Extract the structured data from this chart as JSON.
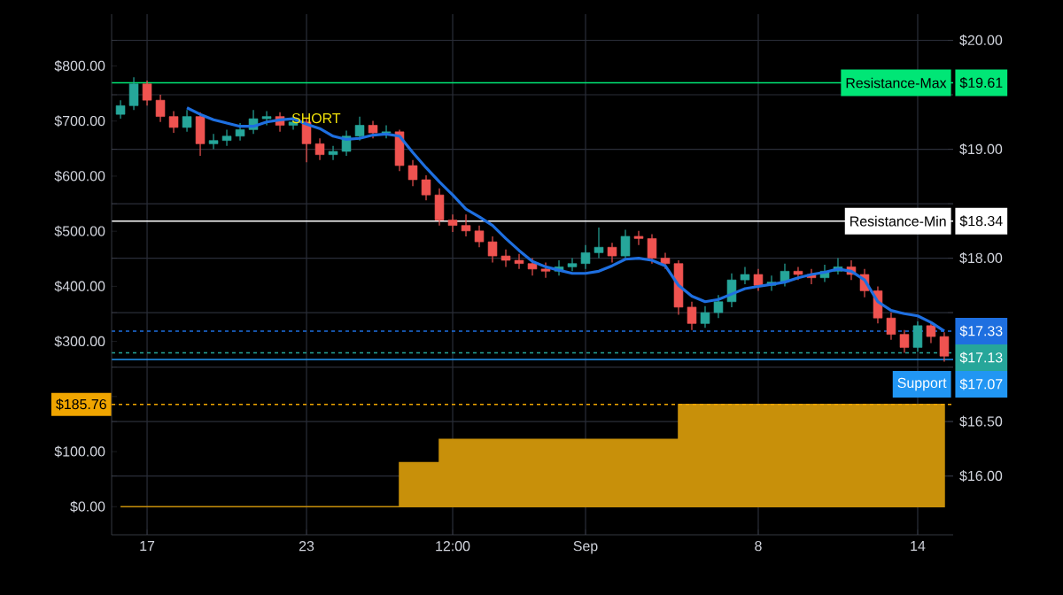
{
  "chart_data": {
    "type": "candlestick",
    "grid": true,
    "categories": [
      null,
      null,
      "17",
      null,
      null,
      null,
      null,
      null,
      null,
      null,
      null,
      null,
      null,
      null,
      "23",
      null,
      null,
      null,
      null,
      null,
      null,
      null,
      null,
      null,
      null,
      "12:00",
      null,
      null,
      null,
      null,
      null,
      null,
      null,
      null,
      null,
      "Sep",
      null,
      null,
      null,
      null,
      null,
      null,
      null,
      null,
      null,
      null,
      null,
      null,
      "8",
      null,
      null,
      null,
      null,
      null,
      null,
      null,
      null,
      null,
      null,
      null,
      "14",
      null,
      null
    ],
    "ylim": [
      -51,
      894
    ],
    "yticks": [
      {
        "value": 0,
        "label": "$0.00"
      },
      {
        "value": 100,
        "label": "$100.00"
      },
      {
        "value": 185.76,
        "label": "$185.76"
      },
      {
        "value": 200,
        "label": null
      },
      {
        "value": 300,
        "label": "$300.00"
      },
      {
        "value": 400,
        "label": "$400.00"
      },
      {
        "value": 500,
        "label": "$500.00"
      },
      {
        "value": 600,
        "label": "$600.00"
      },
      {
        "value": 700,
        "label": "$700.00"
      },
      {
        "value": 800,
        "label": "$800.00"
      }
    ],
    "y2lim": [
      15.46,
      20.24
    ],
    "y2ticks": [
      {
        "value": 16,
        "label": "$16.00"
      },
      {
        "value": 16.5,
        "label": "$16.50"
      },
      {
        "value": 17,
        "label": null
      },
      {
        "value": 17.33,
        "label": "$17.33"
      },
      {
        "value": 17.5,
        "label": null
      },
      {
        "value": 18,
        "label": "$18.00"
      },
      {
        "value": 18.34,
        "label": "$18.34"
      },
      {
        "value": 18.5,
        "label": null
      },
      {
        "value": 19,
        "label": "$19.00"
      },
      {
        "value": 19.5,
        "label": null
      },
      {
        "value": 19.61,
        "label": "$19.61"
      },
      {
        "value": 20,
        "label": "$20.00"
      }
    ],
    "series": [
      {
        "axis": "y2",
        "ohlc": [
          [
            19.32,
            19.45,
            19.28,
            19.4
          ],
          [
            19.4,
            19.66,
            19.36,
            19.6
          ],
          [
            19.6,
            19.63,
            19.4,
            19.45
          ],
          [
            19.45,
            19.5,
            19.25,
            19.3
          ],
          [
            19.3,
            19.35,
            19.15,
            19.2
          ],
          [
            19.2,
            19.36,
            19.16,
            19.3
          ],
          [
            19.3,
            19.34,
            18.94,
            19.05
          ],
          [
            19.05,
            19.14,
            19.0,
            19.08
          ],
          [
            19.08,
            19.18,
            19.03,
            19.12
          ],
          [
            19.12,
            19.24,
            19.08,
            19.18
          ],
          [
            19.18,
            19.36,
            19.14,
            19.28
          ],
          [
            19.28,
            19.35,
            19.22,
            19.3
          ],
          [
            19.3,
            19.34,
            19.16,
            19.22
          ],
          [
            19.22,
            19.3,
            19.18,
            19.25
          ],
          [
            19.25,
            19.28,
            18.88,
            19.05
          ],
          [
            19.05,
            19.1,
            18.9,
            18.95
          ],
          [
            18.95,
            19.03,
            18.9,
            18.98
          ],
          [
            18.98,
            19.17,
            18.94,
            19.12
          ],
          [
            19.12,
            19.3,
            19.08,
            19.22
          ],
          [
            19.22,
            19.26,
            19.1,
            19.15
          ],
          [
            19.15,
            19.22,
            19.1,
            19.16
          ],
          [
            19.16,
            19.18,
            18.8,
            18.85
          ],
          [
            18.85,
            18.9,
            18.66,
            18.72
          ],
          [
            18.72,
            18.76,
            18.53,
            18.58
          ],
          [
            18.58,
            18.64,
            18.3,
            18.35
          ],
          [
            18.35,
            18.4,
            18.24,
            18.3
          ],
          [
            18.3,
            18.4,
            18.2,
            18.25
          ],
          [
            18.25,
            18.3,
            18.1,
            18.15
          ],
          [
            18.15,
            18.2,
            17.96,
            18.02
          ],
          [
            18.02,
            18.08,
            17.92,
            17.98
          ],
          [
            17.98,
            18.04,
            17.9,
            17.95
          ],
          [
            17.95,
            18.0,
            17.84,
            17.9
          ],
          [
            17.9,
            17.96,
            17.82,
            17.88
          ],
          [
            17.88,
            17.98,
            17.84,
            17.92
          ],
          [
            17.92,
            18.0,
            17.88,
            17.95
          ],
          [
            17.95,
            18.12,
            17.9,
            18.05
          ],
          [
            18.05,
            18.28,
            18.0,
            18.1
          ],
          [
            18.1,
            18.14,
            17.96,
            18.02
          ],
          [
            18.02,
            18.26,
            17.98,
            18.2
          ],
          [
            18.2,
            18.25,
            18.12,
            18.18
          ],
          [
            18.18,
            18.22,
            17.95,
            18.0
          ],
          [
            18.0,
            18.05,
            17.9,
            17.95
          ],
          [
            17.95,
            17.98,
            17.48,
            17.55
          ],
          [
            17.55,
            17.6,
            17.34,
            17.4
          ],
          [
            17.4,
            17.56,
            17.36,
            17.5
          ],
          [
            17.5,
            17.66,
            17.45,
            17.6
          ],
          [
            17.6,
            17.86,
            17.55,
            17.8
          ],
          [
            17.8,
            17.92,
            17.76,
            17.85
          ],
          [
            17.85,
            17.9,
            17.7,
            17.75
          ],
          [
            17.75,
            17.84,
            17.7,
            17.78
          ],
          [
            17.78,
            17.95,
            17.74,
            17.88
          ],
          [
            17.88,
            17.92,
            17.8,
            17.85
          ],
          [
            17.85,
            17.9,
            17.76,
            17.82
          ],
          [
            17.82,
            17.94,
            17.78,
            17.88
          ],
          [
            17.88,
            18.0,
            17.85,
            17.92
          ],
          [
            17.92,
            17.98,
            17.8,
            17.85
          ],
          [
            17.85,
            17.9,
            17.64,
            17.7
          ],
          [
            17.7,
            17.74,
            17.4,
            17.45
          ],
          [
            17.45,
            17.5,
            17.25,
            17.3
          ],
          [
            17.3,
            17.34,
            17.13,
            17.18
          ],
          [
            17.18,
            17.42,
            17.14,
            17.38
          ],
          [
            17.38,
            17.42,
            17.22,
            17.28
          ],
          [
            17.28,
            17.32,
            17.05,
            17.1
          ]
        ]
      },
      {
        "type": "line",
        "axis": "y2",
        "color": "#1e6fe0",
        "values": [
          null,
          null,
          null,
          null,
          null,
          19.38,
          19.32,
          19.27,
          19.24,
          19.21,
          19.21,
          19.25,
          19.27,
          19.28,
          19.23,
          19.19,
          19.12,
          19.09,
          19.1,
          19.13,
          19.14,
          19.12,
          18.97,
          18.83,
          18.7,
          18.58,
          18.45,
          18.38,
          18.3,
          18.18,
          18.07,
          17.97,
          17.92,
          17.89,
          17.86,
          17.86,
          17.88,
          17.93,
          17.99,
          18.0,
          17.98,
          17.93,
          17.75,
          17.65,
          17.6,
          17.62,
          17.67,
          17.72,
          17.74,
          17.76,
          17.78,
          17.82,
          17.85,
          17.87,
          17.9,
          17.88,
          17.8,
          17.6,
          17.52,
          17.49,
          17.47,
          17.41,
          17.33
        ]
      },
      {
        "type": "area",
        "axis": "y",
        "color": "#c8900a",
        "values": [
          0,
          0,
          0,
          0,
          0,
          0,
          0,
          0,
          0,
          0,
          0,
          0,
          0,
          0,
          0,
          0,
          0,
          0,
          0,
          0,
          0,
          80,
          80,
          80,
          122,
          122,
          122,
          122,
          122,
          122,
          122,
          122,
          122,
          122,
          122,
          122,
          122,
          122,
          122,
          122,
          122,
          122,
          185.76,
          185.76,
          185.76,
          185.76,
          185.76,
          185.76,
          185.76,
          185.76,
          185.76,
          185.76,
          185.76,
          185.76,
          185.76,
          185.76,
          185.76,
          185.76,
          185.76,
          185.76,
          185.76,
          185.76,
          185.76
        ]
      }
    ],
    "ref_lines": [
      {
        "axis": "y2",
        "value": 19.61,
        "label": "Resistance-Max",
        "color": "#00e676",
        "line_style": "solid"
      },
      {
        "axis": "y2",
        "value": 18.34,
        "label": "Resistance-Min",
        "color": "#ffffff",
        "line_style": "solid"
      },
      {
        "axis": "y2",
        "value": 17.33,
        "color": "#1e6fe0",
        "line_style": "dashed"
      },
      {
        "axis": "y2",
        "value": 17.13,
        "color": "#26a69a",
        "line_style": "dashed"
      },
      {
        "axis": "y2",
        "value": 17.07,
        "label": "Support",
        "color": "#2196f3",
        "line_style": "solid"
      },
      {
        "axis": "y",
        "value": 185.76,
        "color": "#f0a500",
        "line_style": "dashed"
      }
    ],
    "annotations": [
      "SHORT",
      "$17.13",
      "$17.07"
    ]
  }
}
